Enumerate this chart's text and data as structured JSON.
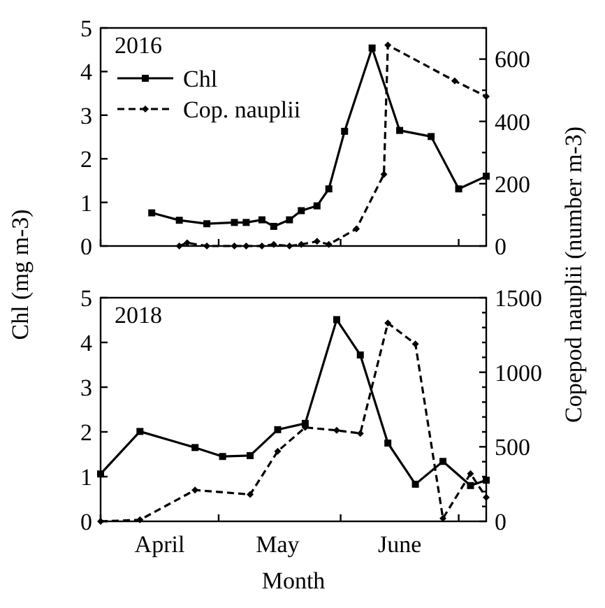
{
  "chart_data": [
    {
      "type": "line",
      "annotations": [
        "2016"
      ],
      "xlim": [
        "--04-01",
        "--07-08"
      ],
      "xticks": [
        {
          "value": "--04-01",
          "label": null
        },
        {
          "value": "--05-01",
          "label": null
        },
        {
          "value": "--06-01",
          "label": null
        },
        {
          "value": "--07-01",
          "label": null
        }
      ],
      "ylim": [
        0,
        5
      ],
      "yticks": [
        0,
        1,
        2,
        3,
        4,
        5
      ],
      "y2lim": [
        0,
        700
      ],
      "y2ticks": [
        0,
        {
          "value": 100,
          "label": null
        },
        200,
        {
          "value": 300,
          "label": null
        },
        400,
        {
          "value": 500,
          "label": null
        },
        600,
        {
          "value": 700,
          "label": null
        }
      ],
      "tick_labels": "y",
      "legend": "top left",
      "series": [
        {
          "name": "Chl",
          "color": "#000000",
          "marker": "square",
          "line_style": "solid",
          "x": [
            "--04-14",
            "--04-21",
            "--04-28",
            "--05-05",
            "--05-08",
            "--05-12",
            "--05-15",
            "--05-19",
            "--05-22",
            "--05-26",
            "--05-29",
            "--06-02",
            "--06-09",
            "--06-16",
            "--06-24",
            "--07-01",
            "--07-08"
          ],
          "values": [
            0.76,
            0.59,
            0.51,
            0.54,
            0.54,
            0.6,
            0.45,
            0.6,
            0.81,
            0.92,
            1.31,
            2.63,
            4.54,
            2.65,
            2.51,
            1.31,
            1.6
          ]
        },
        {
          "name": "Cop. nauplii",
          "color": "#000000",
          "marker": "diamond",
          "line_style": "dashed",
          "axis": "y2",
          "x": [
            "--04-21",
            "--04-23",
            "--04-28",
            "--05-05",
            "--05-08",
            "--05-12",
            "--05-15",
            "--05-19",
            "--05-22",
            "--05-26",
            "--05-29",
            "--06-05",
            "--06-12",
            "--06-13",
            "--06-30",
            "--07-08"
          ],
          "values": [
            0,
            10,
            0,
            0,
            0,
            0,
            5,
            0,
            5,
            15,
            5,
            55,
            230,
            645,
            530,
            480
          ]
        }
      ]
    },
    {
      "type": "line",
      "annotations": [
        "2018"
      ],
      "xlabel": "Month",
      "ylabel": "Chl (mg m-3)",
      "y2label": "Copepod nauplii (number m-3)",
      "xlim": [
        "--04-01",
        "--07-08"
      ],
      "xticks": [
        {
          "value": "--04-01",
          "label": null
        },
        {
          "value": "--04-16",
          "label": "April"
        },
        {
          "value": "--05-01",
          "label": null
        },
        {
          "value": "--05-16",
          "label": "May"
        },
        {
          "value": "--06-01",
          "label": null
        },
        {
          "value": "--06-16",
          "label": "June"
        },
        {
          "value": "--07-01",
          "label": null
        }
      ],
      "ylim": [
        0,
        5
      ],
      "yticks": [
        0,
        1,
        2,
        3,
        4,
        5
      ],
      "y2lim": [
        0,
        1500
      ],
      "y2ticks": [
        0,
        {
          "value": 100,
          "label": null
        },
        {
          "value": 200,
          "label": null
        },
        {
          "value": 300,
          "label": null
        },
        {
          "value": 400,
          "label": null
        },
        500,
        {
          "value": 600,
          "label": null
        },
        {
          "value": 700,
          "label": null
        },
        {
          "value": 800,
          "label": null
        },
        {
          "value": 900,
          "label": null
        },
        1000,
        {
          "value": 1100,
          "label": null
        },
        {
          "value": 1200,
          "label": null
        },
        {
          "value": 1300,
          "label": null
        },
        {
          "value": 1400,
          "label": null
        },
        1500
      ],
      "series": [
        {
          "color": "#000000",
          "marker": "square",
          "line_style": "solid",
          "x": [
            "--04-01",
            "--04-11",
            "--04-25",
            "--05-02",
            "--05-09",
            "--05-16",
            "--05-23",
            "--05-31",
            "--06-06",
            "--06-13",
            "--06-20",
            "--06-27",
            "--07-04",
            "--07-08"
          ],
          "values": [
            1.06,
            2.01,
            1.65,
            1.45,
            1.47,
            2.05,
            2.19,
            4.51,
            3.72,
            1.75,
            0.83,
            1.34,
            0.8,
            0.92
          ]
        },
        {
          "color": "#000000",
          "marker": "diamond",
          "line_style": "dashed",
          "axis": "y2",
          "x": [
            "--04-01",
            "--04-11",
            "--04-25",
            "--05-09",
            "--05-16",
            "--05-23",
            "--05-31",
            "--06-06",
            "--06-13",
            "--06-20",
            "--06-27",
            "--07-04",
            "--07-08"
          ],
          "values": [
            0,
            10,
            210,
            180,
            470,
            630,
            610,
            590,
            1330,
            1190,
            20,
            320,
            160
          ]
        }
      ]
    }
  ]
}
